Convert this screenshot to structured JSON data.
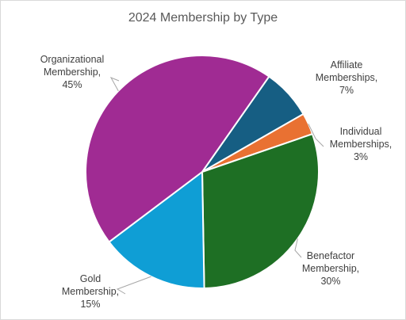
{
  "chart_data": {
    "type": "pie",
    "title": "2024 Membership by Type",
    "slices": [
      {
        "label": "Affiliate Memberships",
        "value": 7,
        "color": "#165e83",
        "label_lines": [
          "Affiliate",
          "Memberships,",
          "7%"
        ]
      },
      {
        "label": "Individual Memberships",
        "value": 3,
        "color": "#e97132",
        "label_lines": [
          "Individual",
          "Memberships,",
          "3%"
        ]
      },
      {
        "label": "Benefactor Membership",
        "value": 30,
        "color": "#1e6f24",
        "label_lines": [
          "Benefactor",
          "Membership,",
          "30%"
        ]
      },
      {
        "label": "Gold Membership",
        "value": 15,
        "color": "#0f9ed5",
        "label_lines": [
          "Gold",
          "Membership,",
          "15%"
        ]
      },
      {
        "label": "Organizational Membership",
        "value": 45,
        "color": "#a02b93",
        "label_lines": [
          "Organizational",
          "Membership,",
          "45%"
        ]
      }
    ]
  }
}
